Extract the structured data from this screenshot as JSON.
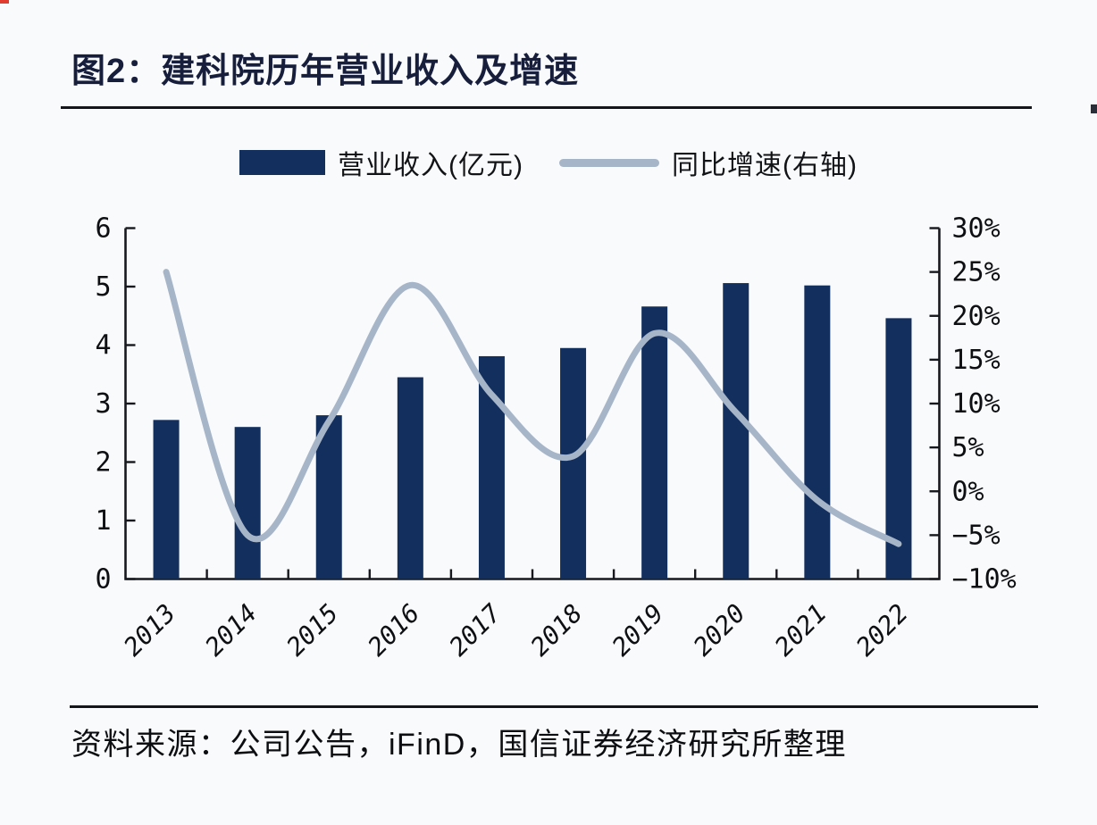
{
  "title": "图2：建科院历年营业收入及增速",
  "legend": {
    "bar_label": "营业收入(亿元)",
    "line_label": "同比增速(右轴)"
  },
  "source": "资料来源：公司公告，iFinD，国信证券经济研究所整理",
  "colors": {
    "bar": "#132f5e",
    "line": "#a7b5c9",
    "title": "#171e3c",
    "axis": "#17181d",
    "text": "#0e0f12",
    "background": "#f9fafc"
  },
  "chart_data": {
    "type": "bar+line",
    "title": "图2：建科院历年营业收入及增速",
    "categories": [
      "2013",
      "2014",
      "2015",
      "2016",
      "2017",
      "2018",
      "2019",
      "2020",
      "2021",
      "2022"
    ],
    "series": [
      {
        "name": "营业收入(亿元)",
        "type": "bar",
        "axis": "left",
        "values": [
          2.72,
          2.6,
          2.8,
          3.45,
          3.81,
          3.95,
          4.66,
          5.06,
          5.02,
          4.46
        ]
      },
      {
        "name": "同比增速(右轴)",
        "type": "line",
        "axis": "right",
        "values": [
          25,
          -5,
          8,
          23.5,
          11,
          4,
          18,
          9,
          -1,
          -6
        ],
        "unit": "%",
        "smooth": true
      }
    ],
    "left_axis": {
      "min": 0,
      "max": 6,
      "step": 1,
      "ticks": [
        "6",
        "5",
        "4",
        "3",
        "2",
        "1",
        "0"
      ]
    },
    "right_axis": {
      "min": -10,
      "max": 30,
      "step": 5,
      "ticks": [
        "30%",
        "25%",
        "20%",
        "15%",
        "10%",
        "5%",
        "0%",
        "−5%",
        "−10%"
      ]
    },
    "grid": false,
    "legend_position": "top"
  }
}
